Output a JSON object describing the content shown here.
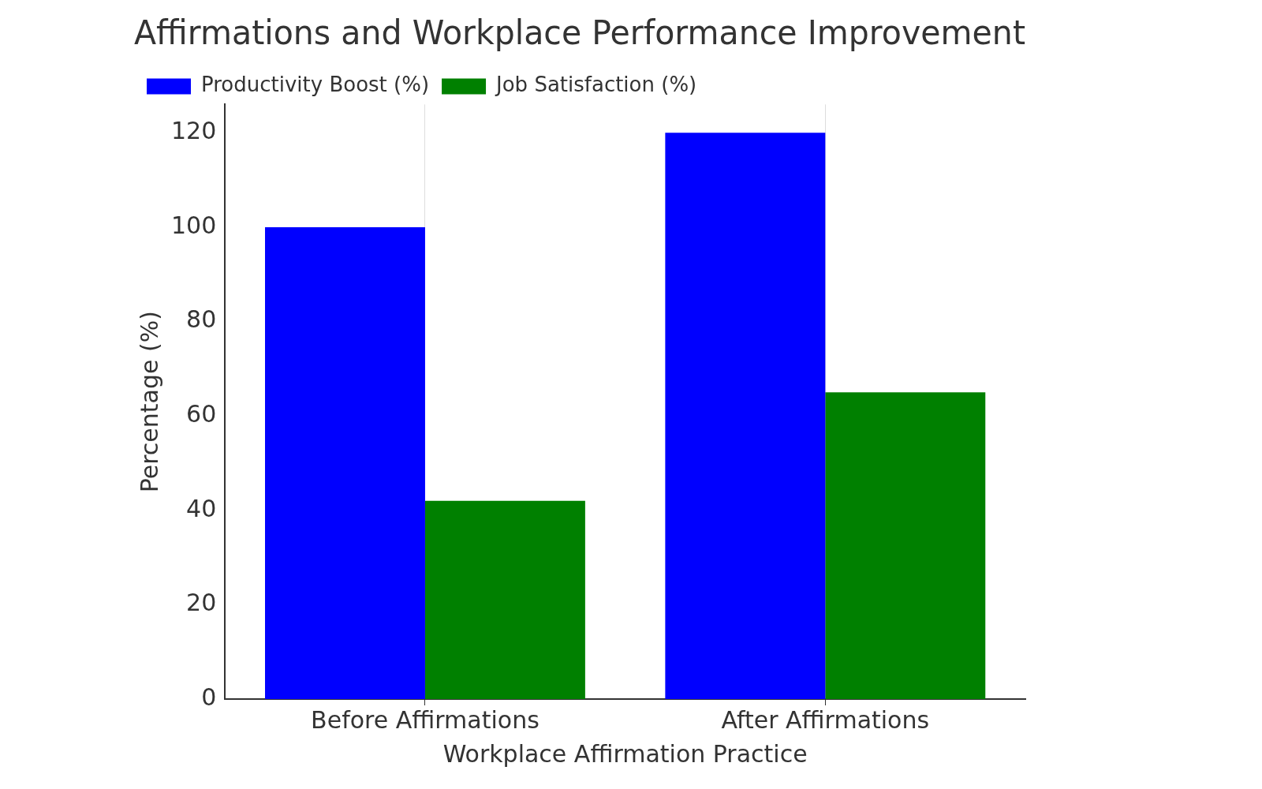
{
  "chart_data": {
    "type": "bar",
    "title": "Affirmations and Workplace Performance Improvement",
    "x_label": "Workplace Affirmation Practice",
    "y_label": "Percentage (%)",
    "categories": [
      "Before Affirmations",
      "After Affirmations"
    ],
    "series": [
      {
        "name": "Productivity Boost (%)",
        "color": "#0000ff",
        "values": [
          100,
          120
        ]
      },
      {
        "name": "Job Satisfaction (%)",
        "color": "#008000",
        "values": [
          42,
          65
        ]
      }
    ],
    "ylim": [
      0,
      126
    ],
    "yticks": [
      0,
      20,
      40,
      60,
      80,
      100,
      120
    ],
    "grid": true,
    "legend": "upper left"
  }
}
